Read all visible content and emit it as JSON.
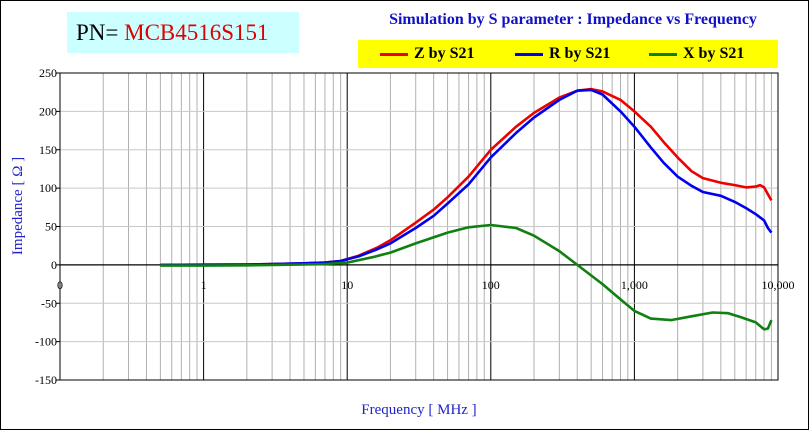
{
  "header": {
    "pn_label": "PN=",
    "pn_value": "MCB4516S151",
    "title": "Simulation by S parameter : Impedance vs Frequency"
  },
  "colors": {
    "z": "#ee0000",
    "r": "#0000ee",
    "x": "#108010",
    "axis_title": "#2222cc",
    "legend_bg": "#ffff00",
    "pn_bg": "#ccffff"
  },
  "chart_data": {
    "type": "line",
    "title": "Simulation by S parameter : Impedance vs Frequency",
    "xlabel": "Frequency [ MHz ]",
    "ylabel": "Impedance [ Ω ]",
    "xscale": "log",
    "xlim": [
      0.1,
      10000
    ],
    "ylim": [
      -150,
      250
    ],
    "x_ticks": [
      "0",
      "1",
      "10",
      "100",
      "1,000",
      "10,000"
    ],
    "y_ticks": [
      "250",
      "200",
      "150",
      "100",
      "50",
      "0",
      "-50",
      "-100",
      "-150"
    ],
    "grid": true,
    "legend_position": "top-right",
    "series": [
      {
        "name": "Z by S21",
        "color_key": "z",
        "points": [
          [
            0.5,
            0
          ],
          [
            1,
            0.2
          ],
          [
            2,
            0.5
          ],
          [
            3,
            1
          ],
          [
            5,
            2
          ],
          [
            7,
            3
          ],
          [
            9,
            5
          ],
          [
            12,
            12
          ],
          [
            16,
            22
          ],
          [
            20,
            32
          ],
          [
            30,
            55
          ],
          [
            40,
            72
          ],
          [
            50,
            88
          ],
          [
            70,
            115
          ],
          [
            100,
            150
          ],
          [
            150,
            180
          ],
          [
            200,
            198
          ],
          [
            300,
            218
          ],
          [
            400,
            227
          ],
          [
            500,
            229
          ],
          [
            600,
            226
          ],
          [
            800,
            215
          ],
          [
            1000,
            200
          ],
          [
            1300,
            180
          ],
          [
            1600,
            160
          ],
          [
            2000,
            140
          ],
          [
            2500,
            122
          ],
          [
            3000,
            113
          ],
          [
            4000,
            107
          ],
          [
            5000,
            104
          ],
          [
            6000,
            101
          ],
          [
            7000,
            102
          ],
          [
            7500,
            104
          ],
          [
            8000,
            101
          ],
          [
            8500,
            92
          ],
          [
            9000,
            84
          ]
        ]
      },
      {
        "name": "R by S21",
        "color_key": "r",
        "points": [
          [
            0.5,
            0
          ],
          [
            1,
            0.2
          ],
          [
            2,
            0.5
          ],
          [
            3,
            1
          ],
          [
            5,
            2
          ],
          [
            7,
            3
          ],
          [
            9,
            5
          ],
          [
            12,
            11
          ],
          [
            16,
            20
          ],
          [
            20,
            28
          ],
          [
            30,
            48
          ],
          [
            40,
            64
          ],
          [
            50,
            80
          ],
          [
            70,
            105
          ],
          [
            100,
            140
          ],
          [
            150,
            172
          ],
          [
            200,
            192
          ],
          [
            300,
            215
          ],
          [
            400,
            227
          ],
          [
            500,
            228
          ],
          [
            600,
            222
          ],
          [
            800,
            200
          ],
          [
            1000,
            180
          ],
          [
            1300,
            153
          ],
          [
            1600,
            133
          ],
          [
            2000,
            115
          ],
          [
            2500,
            103
          ],
          [
            3000,
            95
          ],
          [
            4000,
            90
          ],
          [
            5000,
            82
          ],
          [
            6000,
            74
          ],
          [
            7000,
            66
          ],
          [
            8000,
            58
          ],
          [
            8500,
            48
          ],
          [
            9000,
            42
          ]
        ]
      },
      {
        "name": "X by S21",
        "color_key": "x",
        "points": [
          [
            0.5,
            -1
          ],
          [
            1,
            -1
          ],
          [
            2,
            -0.5
          ],
          [
            3,
            0
          ],
          [
            5,
            0.5
          ],
          [
            7,
            1
          ],
          [
            10,
            3
          ],
          [
            15,
            10
          ],
          [
            20,
            16
          ],
          [
            30,
            28
          ],
          [
            50,
            42
          ],
          [
            70,
            49
          ],
          [
            100,
            52
          ],
          [
            150,
            48
          ],
          [
            200,
            38
          ],
          [
            300,
            18
          ],
          [
            400,
            0
          ],
          [
            600,
            -25
          ],
          [
            800,
            -45
          ],
          [
            1000,
            -60
          ],
          [
            1300,
            -70
          ],
          [
            1800,
            -72
          ],
          [
            2500,
            -67
          ],
          [
            3500,
            -62
          ],
          [
            4500,
            -63
          ],
          [
            5500,
            -68
          ],
          [
            7000,
            -75
          ],
          [
            8000,
            -84
          ],
          [
            8500,
            -83
          ],
          [
            9000,
            -72
          ]
        ]
      }
    ]
  }
}
